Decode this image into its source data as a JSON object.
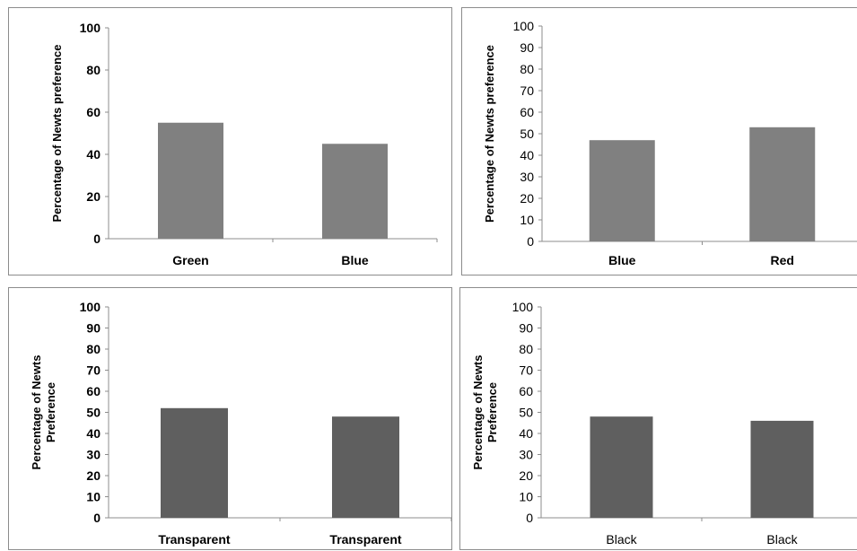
{
  "chart_data": [
    {
      "type": "bar",
      "categories": [
        "Green",
        "Blue"
      ],
      "values": [
        55,
        45
      ],
      "ylabel": "Percentage of Newts preference",
      "ylim": [
        0,
        100
      ],
      "yticks": [
        0,
        20,
        40,
        60,
        80,
        100
      ],
      "bar_color": "#808080",
      "grid": false,
      "legend": "none"
    },
    {
      "type": "bar",
      "categories": [
        "Blue",
        "Red"
      ],
      "values": [
        47,
        53
      ],
      "ylabel": "Percentage of Newts preference",
      "ylim": [
        0,
        100
      ],
      "yticks": [
        0,
        10,
        20,
        30,
        40,
        50,
        60,
        70,
        80,
        90,
        100
      ],
      "bar_color": "#808080",
      "grid": false,
      "legend": "none"
    },
    {
      "type": "bar",
      "categories": [
        "Transparent",
        "Transparent"
      ],
      "values": [
        52,
        48
      ],
      "ylabel": [
        "Percentage of Newts",
        "Preference"
      ],
      "ylim": [
        0,
        100
      ],
      "yticks": [
        0,
        10,
        20,
        30,
        40,
        50,
        60,
        70,
        80,
        90,
        100
      ],
      "bar_color": "#5f5f5f",
      "grid": false,
      "legend": "none"
    },
    {
      "type": "bar",
      "categories": [
        "Black",
        "Black"
      ],
      "values": [
        48,
        46
      ],
      "ylabel": [
        "Percentage of Newts",
        "Preference"
      ],
      "ylim": [
        0,
        100
      ],
      "yticks": [
        0,
        10,
        20,
        30,
        40,
        50,
        60,
        70,
        80,
        90,
        100
      ],
      "bar_color": "#5f5f5f",
      "grid": false,
      "legend": "none"
    }
  ]
}
